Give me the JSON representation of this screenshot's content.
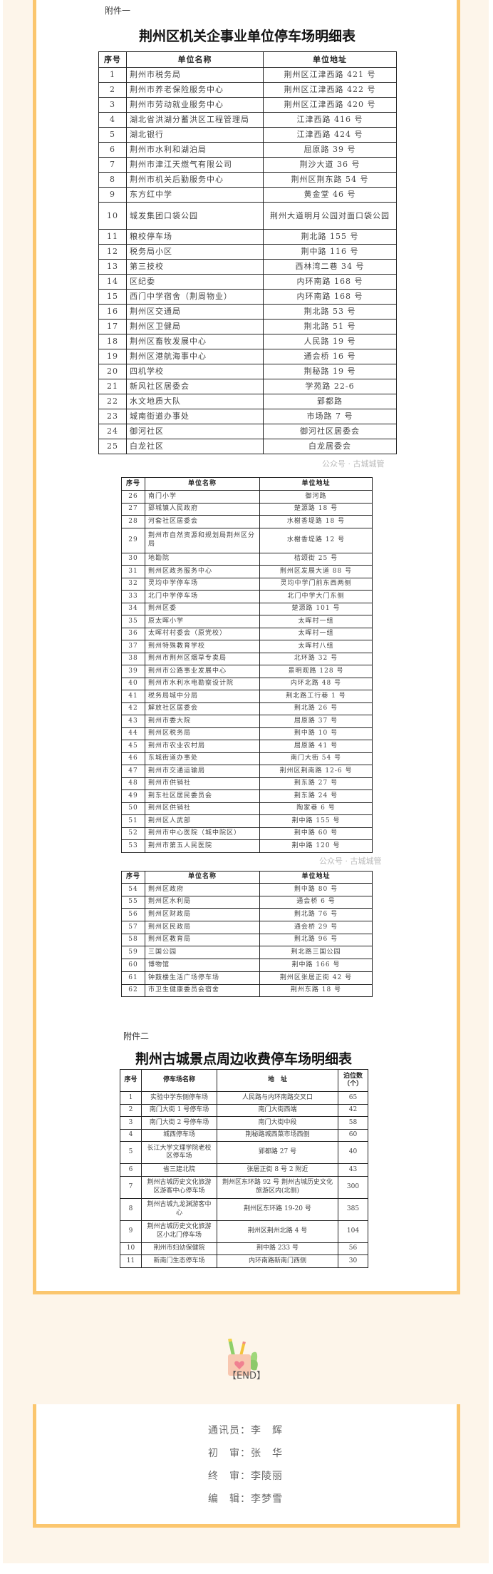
{
  "attachment1": {
    "label": "附件一",
    "title": "荆州区机关企事业单位停车场明细表",
    "headers": [
      "序号",
      "单位名称",
      "单位地址"
    ],
    "rows_part1": [
      [
        "1",
        "荆州市税务局",
        "荆州区江津西路 421 号"
      ],
      [
        "2",
        "荆州市养老保险服务中心",
        "荆州区江津西路 422 号"
      ],
      [
        "3",
        "荆州市劳动就业服务中心",
        "荆州区江津西路 420 号"
      ],
      [
        "4",
        "湖北省洪湖分蓄洪区工程管理局",
        "江津西路 416 号"
      ],
      [
        "5",
        "湖北银行",
        "江津西路 424 号"
      ],
      [
        "6",
        "荆州市水利和湖泊局",
        "屈原路 39 号"
      ],
      [
        "7",
        "荆州市津江天燃气有限公司",
        "荆沙大道 36 号"
      ],
      [
        "8",
        "荆州市机关后勤服务中心",
        "荆州区荆东路 54 号"
      ],
      [
        "9",
        "东方红中学",
        "黄金堂 46 号"
      ],
      [
        "10",
        "城发集团口袋公园",
        "荆州大道明月公园对面口袋公园"
      ],
      [
        "11",
        "粮校停车场",
        "荆北路 155 号"
      ],
      [
        "12",
        "税务局小区",
        "荆中路 116 号"
      ],
      [
        "13",
        "第三技校",
        "西林湾二巷 34 号"
      ],
      [
        "14",
        "区纪委",
        "内环南路 168 号"
      ],
      [
        "15",
        "西门中学宿舍（荆周物业）",
        "内环南路 168 号"
      ],
      [
        "16",
        "荆州区交通局",
        "荆北路 53 号"
      ],
      [
        "17",
        "荆州区卫健局",
        "荆北路 51 号"
      ],
      [
        "18",
        "荆州区畜牧发展中心",
        "人民路 19 号"
      ],
      [
        "19",
        "荆州区港航海事中心",
        "通会桥 16 号"
      ],
      [
        "20",
        "四机学校",
        "荆秘路 19 号"
      ],
      [
        "21",
        "新风社区居委会",
        "学苑路 22-6"
      ],
      [
        "22",
        "水文地质大队",
        "郢都路"
      ],
      [
        "23",
        "城南街道办事处",
        "市场路 7 号"
      ],
      [
        "24",
        "御河社区",
        "御河社区居委会"
      ],
      [
        "25",
        "白龙社区",
        "白龙居委会"
      ]
    ],
    "rows_part2": [
      [
        "26",
        "南门小学",
        "御河路"
      ],
      [
        "27",
        "郢城镇人民政府",
        "楚源路 18 号"
      ],
      [
        "28",
        "河套社区居委会",
        "水榭香堤路 18 号"
      ],
      [
        "29",
        "荆州市自然资源和规划局荆州区分局",
        "水榭香堤路 12 号"
      ],
      [
        "30",
        "地勘院",
        "桔颂街 25 号"
      ],
      [
        "31",
        "荆州区政务服务中心",
        "荆州区发展大道 88 号"
      ],
      [
        "32",
        "灵均中学停车场",
        "灵均中学门前东西两侧"
      ],
      [
        "33",
        "北门中学停车场",
        "北门中学大门东侧"
      ],
      [
        "34",
        "荆州区委",
        "楚源路 101 号"
      ],
      [
        "35",
        "原太晖小学",
        "太晖村一组"
      ],
      [
        "36",
        "太晖村村委会（原党校）",
        "太晖村一组"
      ],
      [
        "37",
        "荆州特殊教育学校",
        "太晖村八组"
      ],
      [
        "38",
        "荆州市荆州区烟草专卖局",
        "北环路 32 号"
      ],
      [
        "39",
        "荆州市公路事业发展中心",
        "景明观路 128 号"
      ],
      [
        "40",
        "荆州市水利水电勘察设计院",
        "内环北路 48 号"
      ],
      [
        "41",
        "税务局城中分局",
        "荆北路工行巷 1 号"
      ],
      [
        "42",
        "解放社区居委会",
        "荆北路 26 号"
      ],
      [
        "43",
        "荆州市委大院",
        "屈原路 37 号"
      ],
      [
        "44",
        "荆州区税务局",
        "荆中路 10 号"
      ],
      [
        "45",
        "荆州市农业农村局",
        "屈原路 41 号"
      ],
      [
        "46",
        "东城街道办事处",
        "南门大街 54 号"
      ],
      [
        "47",
        "荆州市交通运输局",
        "荆州区荆南路 12-6 号"
      ],
      [
        "48",
        "荆州市供销社",
        "荆东路 27 号"
      ],
      [
        "49",
        "荆东社区居民委员会",
        "荆东路 24 号"
      ],
      [
        "50",
        "荆州区供销社",
        "陶家巷 6 号"
      ],
      [
        "51",
        "荆州区人武部",
        "荆中路 155 号"
      ],
      [
        "52",
        "荆州市中心医院（城中院区）",
        "荆中路 60 号"
      ],
      [
        "53",
        "荆州市第五人民医院",
        "荆中路 120 号"
      ]
    ],
    "rows_part3": [
      [
        "54",
        "荆州区政府",
        "荆中路 80 号"
      ],
      [
        "55",
        "荆州区水利局",
        "通会桥 6 号"
      ],
      [
        "56",
        "荆州区财政局",
        "荆北路 76 号"
      ],
      [
        "57",
        "荆州区民政局",
        "通会桥 29 号"
      ],
      [
        "58",
        "荆州区教育局",
        "荆北路 96 号"
      ],
      [
        "59",
        "三国公园",
        "荆北路三国公园"
      ],
      [
        "60",
        "博物馆",
        "荆中路 166 号"
      ],
      [
        "61",
        "钟鼓楼生活广场停车场",
        "荆州区张居正街 42 号"
      ],
      [
        "62",
        "市卫生健康委员会宿舍",
        "荆州东路 18 号"
      ]
    ]
  },
  "attachment2": {
    "label": "附件二",
    "title": "荆州古城景点周边收费停车场明细表",
    "headers": [
      "序号",
      "停车场名称",
      "地　址",
      "泊位数（个）"
    ],
    "rows": [
      [
        "1",
        "实验中学东侧停车场",
        "人民路与内环南路交叉口",
        "65"
      ],
      [
        "2",
        "南门大街 1 号停车场",
        "南门大街西端",
        "42"
      ],
      [
        "3",
        "南门大街 2 号停车场",
        "南门大街中段",
        "58"
      ],
      [
        "4",
        "城西停车场",
        "荆秘路城西菜市场西侧",
        "60"
      ],
      [
        "5",
        "长江大学文理学院老校区停车场",
        "郢都路 27 号",
        "40"
      ],
      [
        "6",
        "省三建北院",
        "张居正街 8 号 2 附近",
        "43"
      ],
      [
        "7",
        "荆州古城历史文化旅游区游客中心停车场",
        "荆州区东环路 92 号 荆州古城历史文化旅游区内(北侧)",
        "300"
      ],
      [
        "8",
        "荆州古城九龙渊游客中心",
        "荆州区东环路 19-20 号",
        "385"
      ],
      [
        "9",
        "荆州古城历史文化旅游区小北门停车场",
        "荆州区荆州北路 4 号",
        "104"
      ],
      [
        "10",
        "荆州市妇幼保健院",
        "荆中路 233 号",
        "56"
      ],
      [
        "11",
        "新南门生态停车场",
        "内环南路新南门西侧",
        "30"
      ]
    ]
  },
  "watermark": "公众号 · 古城城管",
  "end_label": "【END】",
  "credits": [
    "通讯员：李　辉",
    "初　审：张　华",
    "终　审：李陵丽",
    "编　辑：李梦雪"
  ],
  "colors": {
    "frame": "#fbc66e",
    "background": "#fdf5ea"
  }
}
